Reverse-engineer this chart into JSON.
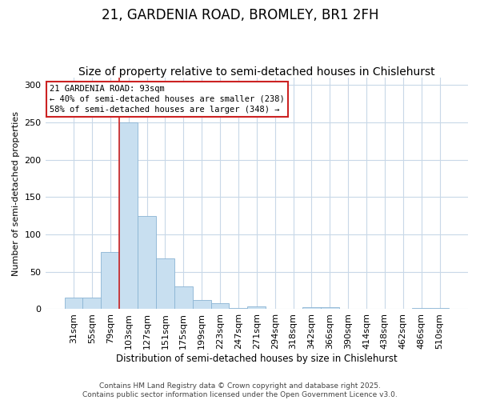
{
  "title": "21, GARDENIA ROAD, BROMLEY, BR1 2FH",
  "subtitle": "Size of property relative to semi-detached houses in Chislehurst",
  "xlabel": "Distribution of semi-detached houses by size in Chislehurst",
  "ylabel": "Number of semi-detached properties",
  "categories": [
    "31sqm",
    "55sqm",
    "79sqm",
    "103sqm",
    "127sqm",
    "151sqm",
    "175sqm",
    "199sqm",
    "223sqm",
    "247sqm",
    "271sqm",
    "294sqm",
    "318sqm",
    "342sqm",
    "366sqm",
    "390sqm",
    "414sqm",
    "438sqm",
    "462sqm",
    "486sqm",
    "510sqm"
  ],
  "values": [
    15,
    15,
    77,
    250,
    125,
    68,
    30,
    12,
    8,
    2,
    4,
    0,
    0,
    3,
    3,
    0,
    0,
    0,
    0,
    2,
    2
  ],
  "bar_color": "#c8dff0",
  "bar_edge_color": "#8ab4d4",
  "grid_color": "#c8d8e8",
  "background_color": "#ffffff",
  "red_line_color": "#cc2222",
  "annotation_text": "21 GARDENIA ROAD: 93sqm\n← 40% of semi-detached houses are smaller (238)\n58% of semi-detached houses are larger (348) →",
  "annotation_box_color": "#ffffff",
  "annotation_box_edge": "#cc2222",
  "footer_text": "Contains HM Land Registry data © Crown copyright and database right 2025.\nContains public sector information licensed under the Open Government Licence v3.0.",
  "ylim": [
    0,
    310
  ],
  "red_line_bin_index": 3,
  "title_fontsize": 12,
  "subtitle_fontsize": 10
}
